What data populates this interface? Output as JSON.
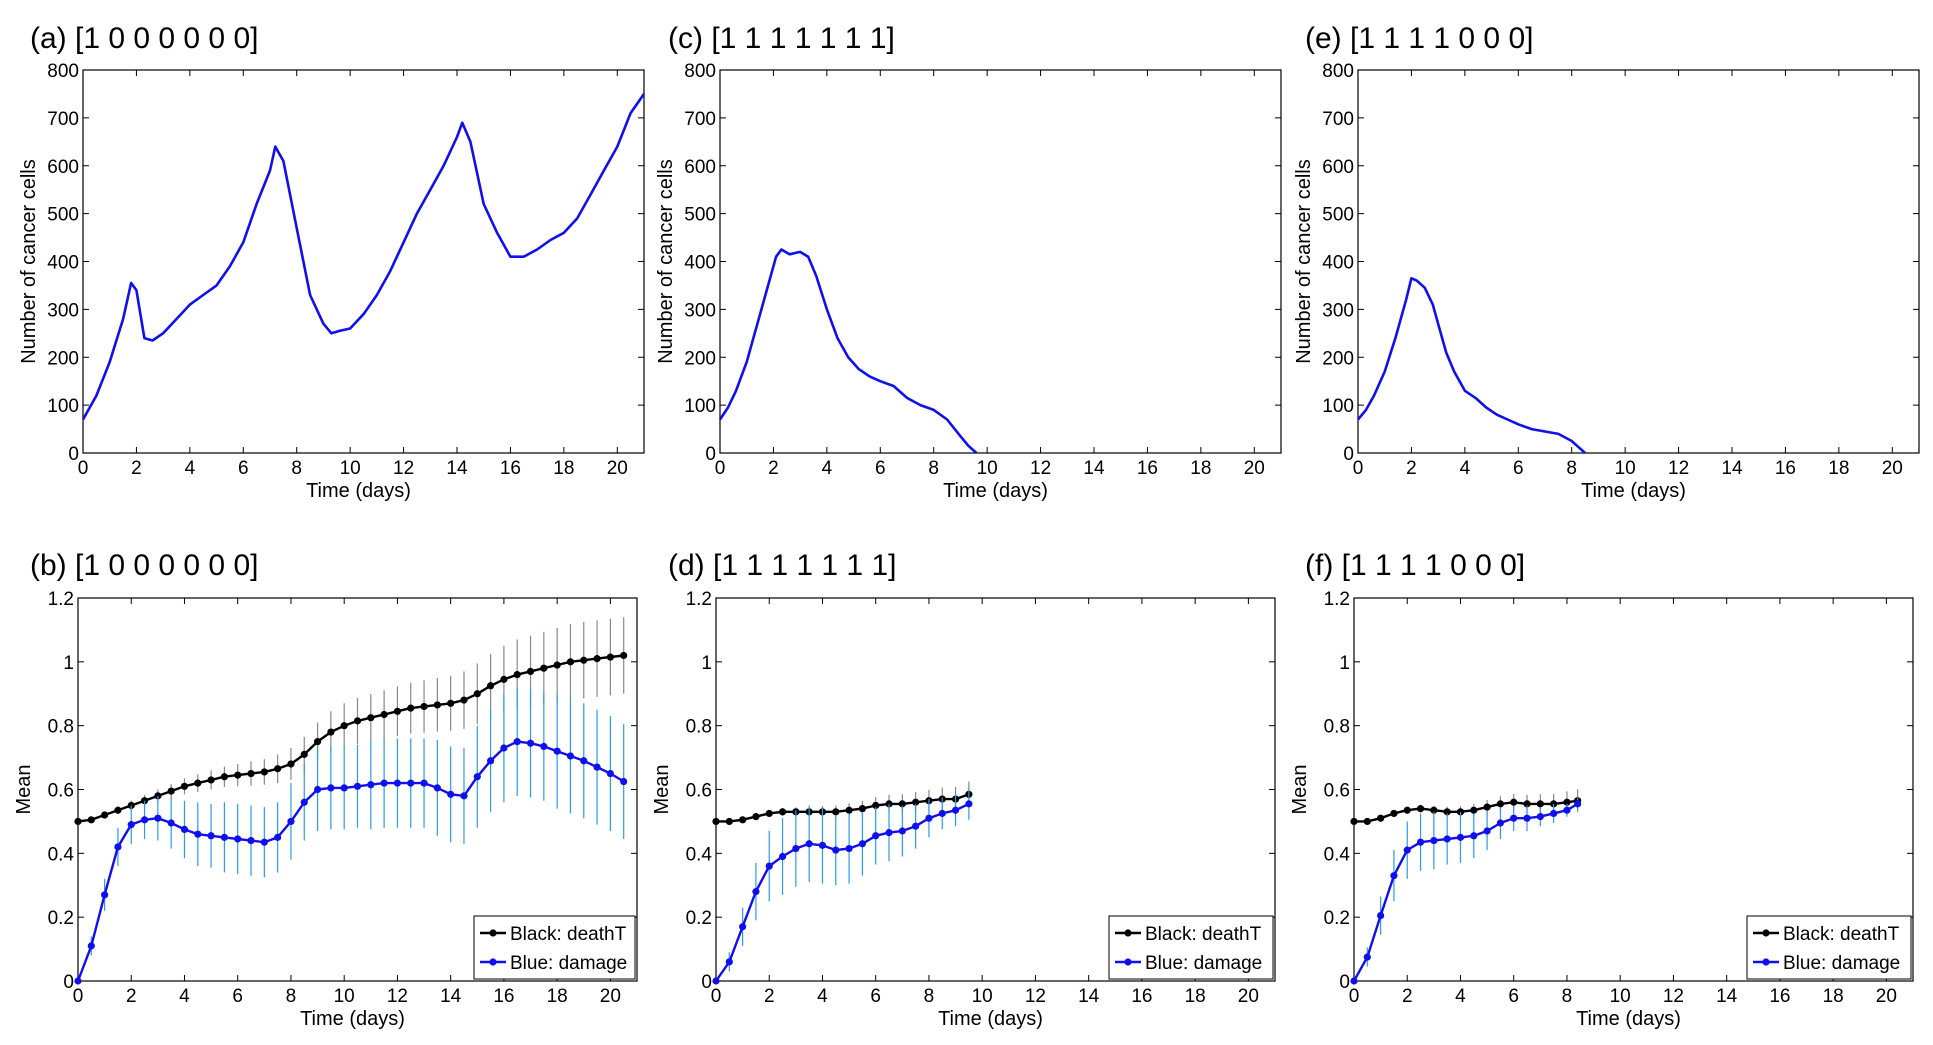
{
  "chart_data": [
    {
      "id": "a",
      "type": "line",
      "title": "(a) [1 0 0 0 0 0 0]",
      "xlabel": "Time (days)",
      "ylabel": "Number of cancer cells",
      "xlim": [
        0,
        21
      ],
      "ylim": [
        0,
        800
      ],
      "xticks": [
        0,
        2,
        4,
        6,
        8,
        10,
        12,
        14,
        16,
        18,
        20
      ],
      "yticks": [
        0,
        100,
        200,
        300,
        400,
        500,
        600,
        700,
        800
      ],
      "series": [
        {
          "name": "cancer cells",
          "color": "#1010ee",
          "x": [
            0,
            0.5,
            1,
            1.5,
            1.8,
            2,
            2.3,
            2.6,
            3,
            3.5,
            4,
            4.5,
            5,
            5.5,
            6,
            6.5,
            7,
            7.2,
            7.5,
            8,
            8.5,
            9,
            9.3,
            9.6,
            10,
            10.5,
            11,
            11.5,
            12,
            12.5,
            13,
            13.5,
            14,
            14.2,
            14.5,
            15,
            15.5,
            16,
            16.5,
            17,
            17.5,
            18,
            18.5,
            19,
            19.5,
            20,
            20.5,
            21
          ],
          "y": [
            70,
            120,
            190,
            280,
            355,
            340,
            240,
            235,
            250,
            280,
            310,
            330,
            350,
            390,
            440,
            520,
            590,
            640,
            610,
            470,
            330,
            270,
            250,
            255,
            260,
            290,
            330,
            380,
            440,
            500,
            550,
            600,
            660,
            690,
            650,
            520,
            460,
            410,
            410,
            425,
            445,
            460,
            490,
            540,
            590,
            640,
            710,
            750
          ]
        }
      ]
    },
    {
      "id": "b",
      "type": "line",
      "title": "(b) [1 0 0 0 0 0 0]",
      "xlabel": "Time (days)",
      "ylabel": "Mean",
      "xlim": [
        0,
        21
      ],
      "ylim": [
        0,
        1.2
      ],
      "xticks": [
        0,
        2,
        4,
        6,
        8,
        10,
        12,
        14,
        16,
        18,
        20
      ],
      "yticks": [
        0,
        0.2,
        0.4,
        0.6,
        0.8,
        1,
        1.2
      ],
      "legend": [
        "Black: deathT",
        "Blue: damage"
      ],
      "legend_position": "bottom-right",
      "x": [
        0,
        0.5,
        1,
        1.5,
        2,
        2.5,
        3,
        3.5,
        4,
        4.5,
        5,
        5.5,
        6,
        6.5,
        7,
        7.5,
        8,
        8.5,
        9,
        9.5,
        10,
        10.5,
        11,
        11.5,
        12,
        12.5,
        13,
        13.5,
        14,
        14.5,
        15,
        15.5,
        16,
        16.5,
        17,
        17.5,
        18,
        18.5,
        19,
        19.5,
        20,
        20.5
      ],
      "series": [
        {
          "name": "deathT",
          "color": "#000000",
          "error_color": "#888888",
          "values": [
            0.5,
            0.505,
            0.52,
            0.535,
            0.55,
            0.565,
            0.58,
            0.595,
            0.61,
            0.62,
            0.63,
            0.64,
            0.645,
            0.65,
            0.655,
            0.665,
            0.68,
            0.71,
            0.75,
            0.78,
            0.8,
            0.815,
            0.825,
            0.835,
            0.845,
            0.855,
            0.86,
            0.865,
            0.87,
            0.88,
            0.9,
            0.925,
            0.945,
            0.96,
            0.97,
            0.98,
            0.99,
            1.0,
            1.005,
            1.01,
            1.015,
            1.02
          ],
          "errors": [
            0,
            0.005,
            0.01,
            0.012,
            0.015,
            0.018,
            0.02,
            0.022,
            0.025,
            0.028,
            0.03,
            0.032,
            0.035,
            0.038,
            0.04,
            0.045,
            0.05,
            0.055,
            0.06,
            0.065,
            0.07,
            0.072,
            0.074,
            0.076,
            0.078,
            0.08,
            0.082,
            0.084,
            0.086,
            0.09,
            0.095,
            0.1,
            0.105,
            0.11,
            0.112,
            0.114,
            0.116,
            0.118,
            0.12,
            0.12,
            0.12,
            0.12
          ]
        },
        {
          "name": "damage",
          "color": "#1010ee",
          "error_color": "#2a9af0",
          "values": [
            0,
            0.11,
            0.27,
            0.42,
            0.49,
            0.505,
            0.51,
            0.495,
            0.475,
            0.46,
            0.455,
            0.45,
            0.445,
            0.44,
            0.435,
            0.45,
            0.5,
            0.56,
            0.6,
            0.605,
            0.605,
            0.61,
            0.615,
            0.62,
            0.62,
            0.62,
            0.62,
            0.605,
            0.585,
            0.58,
            0.64,
            0.69,
            0.73,
            0.75,
            0.745,
            0.735,
            0.72,
            0.705,
            0.69,
            0.67,
            0.65,
            0.625
          ],
          "errors": [
            0,
            0.03,
            0.05,
            0.06,
            0.06,
            0.06,
            0.07,
            0.08,
            0.09,
            0.1,
            0.1,
            0.11,
            0.11,
            0.11,
            0.11,
            0.11,
            0.12,
            0.12,
            0.13,
            0.13,
            0.13,
            0.13,
            0.14,
            0.14,
            0.14,
            0.14,
            0.14,
            0.15,
            0.15,
            0.15,
            0.16,
            0.16,
            0.17,
            0.17,
            0.17,
            0.17,
            0.18,
            0.18,
            0.18,
            0.18,
            0.18,
            0.18
          ]
        }
      ]
    },
    {
      "id": "c",
      "type": "line",
      "title": "(c) [1 1 1 1 1 1 1]",
      "xlabel": "Time (days)",
      "ylabel": "Number of cancer cells",
      "xlim": [
        0,
        21
      ],
      "ylim": [
        0,
        800
      ],
      "xticks": [
        0,
        2,
        4,
        6,
        8,
        10,
        12,
        14,
        16,
        18,
        20
      ],
      "yticks": [
        0,
        100,
        200,
        300,
        400,
        500,
        600,
        700,
        800
      ],
      "series": [
        {
          "name": "cancer cells",
          "color": "#1010ee",
          "x": [
            0,
            0.3,
            0.6,
            1,
            1.4,
            1.8,
            2.1,
            2.3,
            2.6,
            3,
            3.3,
            3.6,
            4,
            4.4,
            4.8,
            5.2,
            5.6,
            6,
            6.5,
            7,
            7.5,
            8,
            8.5,
            9,
            9.3,
            9.6
          ],
          "y": [
            70,
            95,
            130,
            190,
            270,
            350,
            410,
            425,
            415,
            420,
            410,
            370,
            300,
            240,
            200,
            175,
            160,
            150,
            140,
            115,
            100,
            90,
            70,
            35,
            15,
            0
          ]
        }
      ]
    },
    {
      "id": "d",
      "type": "line",
      "title": "(d) [1 1 1 1 1 1 1]",
      "xlabel": "Time (days)",
      "ylabel": "Mean",
      "xlim": [
        0,
        21
      ],
      "ylim": [
        0,
        1.2
      ],
      "xticks": [
        0,
        2,
        4,
        6,
        8,
        10,
        12,
        14,
        16,
        18,
        20
      ],
      "yticks": [
        0,
        0.2,
        0.4,
        0.6,
        0.8,
        1,
        1.2
      ],
      "legend": [
        "Black: deathT",
        "Blue: damage"
      ],
      "legend_position": "bottom-right",
      "x": [
        0,
        0.5,
        1,
        1.5,
        2,
        2.5,
        3,
        3.5,
        4,
        4.5,
        5,
        5.5,
        6,
        6.5,
        7,
        7.5,
        8,
        8.5,
        9,
        9.5
      ],
      "series": [
        {
          "name": "deathT",
          "color": "#000000",
          "error_color": "#888888",
          "values": [
            0.5,
            0.5,
            0.505,
            0.515,
            0.525,
            0.53,
            0.53,
            0.53,
            0.53,
            0.53,
            0.535,
            0.54,
            0.55,
            0.555,
            0.555,
            0.56,
            0.565,
            0.57,
            0.57,
            0.585
          ],
          "errors": [
            0,
            0.004,
            0.006,
            0.008,
            0.01,
            0.012,
            0.014,
            0.016,
            0.018,
            0.02,
            0.022,
            0.024,
            0.026,
            0.028,
            0.03,
            0.032,
            0.034,
            0.036,
            0.038,
            0.04
          ]
        },
        {
          "name": "damage",
          "color": "#1010ee",
          "error_color": "#2a9af0",
          "values": [
            0,
            0.06,
            0.17,
            0.28,
            0.36,
            0.39,
            0.415,
            0.43,
            0.425,
            0.41,
            0.415,
            0.43,
            0.455,
            0.465,
            0.47,
            0.485,
            0.51,
            0.525,
            0.535,
            0.555
          ],
          "errors": [
            0,
            0.03,
            0.06,
            0.09,
            0.11,
            0.12,
            0.12,
            0.12,
            0.12,
            0.11,
            0.11,
            0.1,
            0.09,
            0.09,
            0.08,
            0.07,
            0.06,
            0.05,
            0.05,
            0.05
          ]
        }
      ]
    },
    {
      "id": "e",
      "type": "line",
      "title": "(e) [1 1 1 1 0 0 0]",
      "xlabel": "Time (days)",
      "ylabel": "Number of cancer cells",
      "xlim": [
        0,
        21
      ],
      "ylim": [
        0,
        800
      ],
      "xticks": [
        0,
        2,
        4,
        6,
        8,
        10,
        12,
        14,
        16,
        18,
        20
      ],
      "yticks": [
        0,
        100,
        200,
        300,
        400,
        500,
        600,
        700,
        800
      ],
      "series": [
        {
          "name": "cancer cells",
          "color": "#1010ee",
          "x": [
            0,
            0.3,
            0.6,
            1,
            1.4,
            1.8,
            2,
            2.2,
            2.5,
            2.8,
            3,
            3.3,
            3.6,
            4,
            4.4,
            4.8,
            5.2,
            5.6,
            6,
            6.5,
            7,
            7.5,
            8,
            8.3,
            8.5
          ],
          "y": [
            70,
            90,
            120,
            170,
            240,
            320,
            365,
            360,
            345,
            310,
            270,
            210,
            170,
            130,
            115,
            95,
            80,
            70,
            60,
            50,
            45,
            40,
            25,
            10,
            0
          ]
        }
      ]
    },
    {
      "id": "f",
      "type": "line",
      "title": "(f) [1 1 1 1 0 0 0]",
      "xlabel": "Time (days)",
      "ylabel": "Mean",
      "xlim": [
        0,
        21
      ],
      "ylim": [
        0,
        1.2
      ],
      "xticks": [
        0,
        2,
        4,
        6,
        8,
        10,
        12,
        14,
        16,
        18,
        20
      ],
      "yticks": [
        0,
        0.2,
        0.4,
        0.6,
        0.8,
        1,
        1.2
      ],
      "legend": [
        "Black: deathT",
        "Blue: damage"
      ],
      "legend_position": "bottom-right",
      "x": [
        0,
        0.5,
        1,
        1.5,
        2,
        2.5,
        3,
        3.5,
        4,
        4.5,
        5,
        5.5,
        6,
        6.5,
        7,
        7.5,
        8,
        8.4
      ],
      "series": [
        {
          "name": "deathT",
          "color": "#000000",
          "error_color": "#888888",
          "values": [
            0.5,
            0.5,
            0.51,
            0.525,
            0.535,
            0.54,
            0.535,
            0.53,
            0.53,
            0.535,
            0.545,
            0.555,
            0.56,
            0.555,
            0.555,
            0.555,
            0.56,
            0.565
          ],
          "errors": [
            0,
            0.004,
            0.006,
            0.008,
            0.01,
            0.012,
            0.014,
            0.016,
            0.018,
            0.02,
            0.022,
            0.024,
            0.026,
            0.028,
            0.03,
            0.032,
            0.034,
            0.036
          ]
        },
        {
          "name": "damage",
          "color": "#1010ee",
          "error_color": "#2a9af0",
          "values": [
            0,
            0.075,
            0.205,
            0.33,
            0.41,
            0.435,
            0.44,
            0.445,
            0.45,
            0.455,
            0.47,
            0.495,
            0.51,
            0.51,
            0.515,
            0.525,
            0.535,
            0.555
          ],
          "errors": [
            0,
            0.03,
            0.06,
            0.08,
            0.09,
            0.09,
            0.09,
            0.08,
            0.08,
            0.07,
            0.06,
            0.05,
            0.04,
            0.04,
            0.03,
            0.03,
            0.02,
            0.02
          ]
        }
      ]
    }
  ]
}
